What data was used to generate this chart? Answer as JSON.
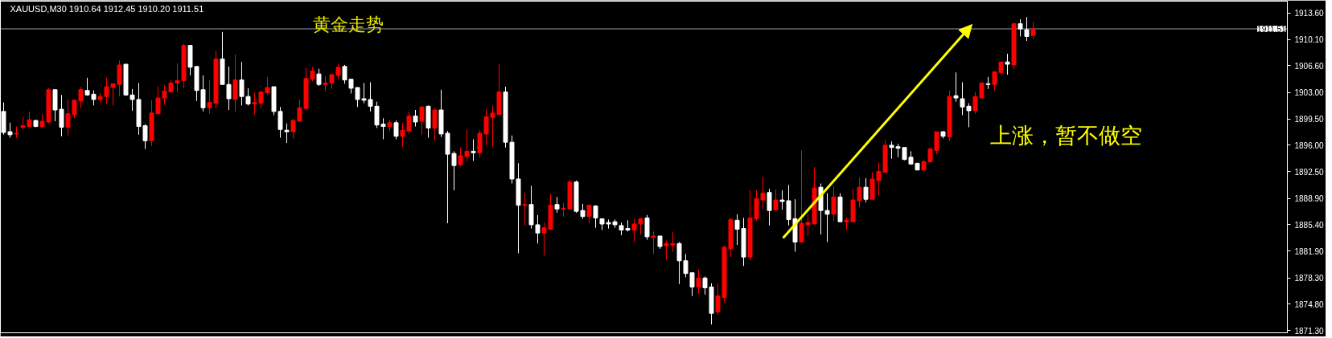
{
  "chart_data": {
    "type": "candlestick",
    "title": "XAUUSD,M30  1910.64 1912.45 1910.20 1911.51",
    "annotations": [
      "黄金走势",
      "上涨，暂不做空"
    ],
    "categories": [
      null,
      null,
      null,
      null,
      null,
      null,
      null,
      null,
      null,
      null,
      null,
      null,
      null,
      null,
      null,
      null,
      null,
      null,
      null,
      null,
      null,
      null,
      null,
      null,
      null,
      null,
      null,
      null,
      null,
      null,
      null,
      null,
      null,
      null,
      null,
      null,
      null,
      null,
      null,
      null,
      null,
      null,
      null,
      null,
      null,
      null,
      null,
      null,
      null,
      null,
      null,
      null,
      null,
      null,
      null,
      null,
      null,
      null,
      null,
      null,
      null,
      null,
      null,
      null,
      null,
      null,
      null,
      null,
      null,
      null,
      null,
      null,
      null,
      null,
      null,
      null,
      null,
      null,
      null,
      null,
      null,
      null,
      null,
      null,
      null,
      null,
      null,
      null,
      null,
      null,
      null,
      null,
      null,
      null,
      null,
      null,
      null,
      null,
      null,
      null,
      null,
      null,
      null,
      null,
      null,
      null,
      null,
      null,
      null,
      null,
      null,
      null,
      null,
      null,
      null,
      null,
      null,
      null,
      null,
      null,
      null,
      null,
      null,
      null,
      null,
      null,
      null,
      null,
      null,
      null,
      null,
      null,
      null,
      null,
      null,
      null,
      null,
      null,
      null,
      null,
      null,
      null,
      null,
      null,
      null,
      null,
      null,
      null,
      null,
      null,
      null,
      null,
      null,
      null,
      null,
      null,
      null,
      null,
      null,
      null,
      null,
      null,
      null,
      null,
      null,
      null,
      null,
      null,
      null,
      null,
      null,
      null,
      null,
      null,
      null,
      null,
      null,
      null,
      null,
      null,
      null,
      null,
      null,
      null,
      null,
      null,
      null,
      null,
      null,
      null,
      null,
      null,
      null,
      null,
      null,
      null,
      null,
      null,
      null,
      null
    ],
    "ohlc": [
      [
        1900.5,
        1901.7,
        1897.4,
        1897.7
      ],
      [
        1897.8,
        1899.0,
        1897.0,
        1897.4
      ],
      [
        1897.5,
        1898.5,
        1897.0,
        1897.6
      ],
      [
        1898.4,
        1899.8,
        1898.1,
        1898.6
      ],
      [
        1898.5,
        1900.5,
        1898.5,
        1899.4
      ],
      [
        1899.3,
        1899.4,
        1898.4,
        1898.5
      ],
      [
        1898.5,
        1900.2,
        1898.3,
        1899.2
      ],
      [
        1899.1,
        1903.6,
        1898.9,
        1903.4
      ],
      [
        1903.4,
        1903.4,
        1899.2,
        1900.7
      ],
      [
        1900.8,
        1902.7,
        1897.2,
        1898.4
      ],
      [
        1898.4,
        1902.1,
        1897.3,
        1900.2
      ],
      [
        1900.1,
        1902.1,
        1899.6,
        1902.0
      ],
      [
        1901.9,
        1903.8,
        1900.9,
        1903.4
      ],
      [
        1903.3,
        1905.0,
        1902.6,
        1902.7
      ],
      [
        1902.8,
        1903.3,
        1901.3,
        1902.1
      ],
      [
        1902.1,
        1903.0,
        1901.7,
        1902.5
      ],
      [
        1902.5,
        1905.0,
        1901.5,
        1903.8
      ],
      [
        1903.7,
        1904.2,
        1901.3,
        1904.2
      ],
      [
        1904.1,
        1907.3,
        1902.5,
        1906.7
      ],
      [
        1906.8,
        1906.8,
        1902.6,
        1902.7
      ],
      [
        1902.7,
        1903.5,
        1900.6,
        1902.1
      ],
      [
        1902.1,
        1904.3,
        1897.4,
        1898.5
      ],
      [
        1898.6,
        1898.8,
        1895.5,
        1896.6
      ],
      [
        1896.6,
        1902.0,
        1895.9,
        1900.3
      ],
      [
        1900.2,
        1903.8,
        1900.2,
        1902.3
      ],
      [
        1902.3,
        1904.0,
        1901.4,
        1903.2
      ],
      [
        1903.1,
        1904.7,
        1903.1,
        1904.3
      ],
      [
        1904.3,
        1906.9,
        1903.1,
        1904.6
      ],
      [
        1904.6,
        1909.5,
        1903.6,
        1909.3
      ],
      [
        1909.3,
        1909.3,
        1905.3,
        1906.4
      ],
      [
        1906.5,
        1906.5,
        1901.9,
        1903.3
      ],
      [
        1903.4,
        1905.3,
        1900.5,
        1901.0
      ],
      [
        1901.0,
        1904.7,
        1900.2,
        1901.7
      ],
      [
        1901.6,
        1908.6,
        1900.9,
        1907.5
      ],
      [
        1907.5,
        1911.1,
        1904.1,
        1904.1
      ],
      [
        1904.1,
        1906.5,
        1900.7,
        1902.2
      ],
      [
        1902.1,
        1908.1,
        1900.5,
        1904.7
      ],
      [
        1904.7,
        1907.1,
        1901.3,
        1902.5
      ],
      [
        1902.5,
        1903.6,
        1901.3,
        1901.5
      ],
      [
        1901.5,
        1903.0,
        1900.1,
        1901.7
      ],
      [
        1901.6,
        1903.2,
        1900.9,
        1903.1
      ],
      [
        1903.0,
        1905.1,
        1902.7,
        1903.7
      ],
      [
        1903.8,
        1903.8,
        1900.0,
        1900.5
      ],
      [
        1900.5,
        1901.1,
        1897.0,
        1898.1
      ],
      [
        1898.0,
        1898.9,
        1896.3,
        1897.8
      ],
      [
        1897.8,
        1899.5,
        1896.9,
        1899.3
      ],
      [
        1899.2,
        1902.1,
        1899.2,
        1901.0
      ],
      [
        1900.9,
        1906.3,
        1900.7,
        1904.9
      ],
      [
        1904.8,
        1906.4,
        1904.5,
        1905.9
      ],
      [
        1905.5,
        1906.2,
        1903.9,
        1904.1
      ],
      [
        1904.1,
        1905.2,
        1903.3,
        1904.3
      ],
      [
        1904.3,
        1905.6,
        1903.5,
        1905.4
      ],
      [
        1905.3,
        1906.9,
        1904.8,
        1906.4
      ],
      [
        1906.5,
        1906.7,
        1904.2,
        1904.7
      ],
      [
        1904.8,
        1904.8,
        1902.9,
        1903.6
      ],
      [
        1903.7,
        1903.7,
        1901.1,
        1902.1
      ],
      [
        1902.2,
        1904.3,
        1901.6,
        1902.0
      ],
      [
        1902.1,
        1904.4,
        1900.5,
        1901.2
      ],
      [
        1901.2,
        1901.8,
        1898.3,
        1898.7
      ],
      [
        1898.8,
        1899.6,
        1896.8,
        1898.5
      ],
      [
        1898.5,
        1899.4,
        1897.9,
        1899.0
      ],
      [
        1899.0,
        1899.3,
        1896.8,
        1897.2
      ],
      [
        1897.2,
        1899.0,
        1895.8,
        1898.0
      ],
      [
        1897.9,
        1900.5,
        1897.5,
        1899.9
      ],
      [
        1899.9,
        1900.7,
        1898.5,
        1899.1
      ],
      [
        1899.2,
        1901.2,
        1897.4,
        1901.1
      ],
      [
        1901.2,
        1901.3,
        1897.0,
        1898.3
      ],
      [
        1898.3,
        1901.0,
        1896.6,
        1900.7
      ],
      [
        1900.7,
        1903.4,
        1897.1,
        1897.5
      ],
      [
        1897.6,
        1897.9,
        1885.6,
        1894.8
      ],
      [
        1894.9,
        1895.2,
        1890.0,
        1893.3
      ],
      [
        1893.4,
        1895.7,
        1893.2,
        1894.6
      ],
      [
        1894.5,
        1898.1,
        1893.9,
        1895.2
      ],
      [
        1895.2,
        1896.8,
        1893.9,
        1895.0
      ],
      [
        1895.0,
        1898.0,
        1894.4,
        1897.6
      ],
      [
        1897.5,
        1900.8,
        1896.0,
        1899.8
      ],
      [
        1899.7,
        1901.3,
        1895.8,
        1900.3
      ],
      [
        1900.1,
        1906.8,
        1900.1,
        1903.1
      ],
      [
        1903.1,
        1903.8,
        1895.7,
        1896.4
      ],
      [
        1896.4,
        1897.3,
        1890.9,
        1891.5
      ],
      [
        1891.5,
        1893.6,
        1881.6,
        1888.0
      ],
      [
        1888.0,
        1889.7,
        1885.3,
        1888.1
      ],
      [
        1888.1,
        1890.6,
        1884.9,
        1885.4
      ],
      [
        1885.4,
        1886.7,
        1882.9,
        1884.3
      ],
      [
        1884.3,
        1885.7,
        1881.3,
        1885.0
      ],
      [
        1884.8,
        1889.5,
        1884.7,
        1888.0
      ],
      [
        1888.1,
        1889.1,
        1887.0,
        1887.5
      ],
      [
        1887.5,
        1888.3,
        1886.5,
        1887.6
      ],
      [
        1887.5,
        1891.4,
        1887.5,
        1891.1
      ],
      [
        1891.1,
        1891.3,
        1887.0,
        1887.2
      ],
      [
        1887.3,
        1888.2,
        1886.2,
        1886.5
      ],
      [
        1886.5,
        1888.0,
        1885.6,
        1888.0
      ],
      [
        1887.9,
        1888.0,
        1885.0,
        1886.3
      ],
      [
        1886.2,
        1886.2,
        1884.7,
        1885.5
      ],
      [
        1885.7,
        1886.1,
        1884.9,
        1885.5
      ],
      [
        1885.8,
        1886.1,
        1885.0,
        1885.4
      ],
      [
        1885.3,
        1885.7,
        1884.0,
        1884.7
      ],
      [
        1884.9,
        1886.0,
        1884.5,
        1884.7
      ],
      [
        1884.7,
        1886.2,
        1883.1,
        1885.5
      ],
      [
        1885.5,
        1886.3,
        1884.1,
        1886.2
      ],
      [
        1886.3,
        1886.7,
        1883.4,
        1883.8
      ],
      [
        1883.7,
        1884.5,
        1881.5,
        1883.9
      ],
      [
        1883.9,
        1883.9,
        1882.2,
        1882.5
      ],
      [
        1882.6,
        1883.3,
        1880.7,
        1882.9
      ],
      [
        1882.7,
        1884.4,
        1881.8,
        1882.9
      ],
      [
        1882.9,
        1883.1,
        1877.5,
        1880.6
      ],
      [
        1880.6,
        1881.5,
        1878.4,
        1878.9
      ],
      [
        1879.0,
        1879.0,
        1875.9,
        1877.1
      ],
      [
        1877.1,
        1879.4,
        1876.2,
        1878.3
      ],
      [
        1878.3,
        1878.5,
        1876.1,
        1877.0
      ],
      [
        1877.1,
        1877.6,
        1872.1,
        1873.6
      ],
      [
        1873.8,
        1877.5,
        1873.4,
        1875.9
      ],
      [
        1875.7,
        1882.7,
        1875.0,
        1882.4
      ],
      [
        1882.2,
        1886.3,
        1881.1,
        1886.1
      ],
      [
        1886.0,
        1886.8,
        1882.7,
        1884.8
      ],
      [
        1884.9,
        1886.3,
        1879.9,
        1881.1
      ],
      [
        1881.1,
        1890.0,
        1880.7,
        1886.3
      ],
      [
        1886.2,
        1890.0,
        1885.9,
        1888.9
      ],
      [
        1888.7,
        1891.8,
        1887.5,
        1889.6
      ],
      [
        1889.7,
        1890.2,
        1885.3,
        1887.3
      ],
      [
        1887.4,
        1890.1,
        1887.3,
        1888.7
      ],
      [
        1888.7,
        1890.0,
        1887.4,
        1888.5
      ],
      [
        1888.6,
        1890.7,
        1885.3,
        1886.1
      ],
      [
        1886.2,
        1888.8,
        1881.8,
        1883.1
      ],
      [
        1883.1,
        1895.3,
        1883.1,
        1885.6
      ],
      [
        1885.4,
        1886.8,
        1883.9,
        1885.7
      ],
      [
        1885.5,
        1893.1,
        1885.5,
        1890.3
      ],
      [
        1890.4,
        1890.9,
        1884.1,
        1887.3
      ],
      [
        1887.3,
        1889.6,
        1883.1,
        1886.8
      ],
      [
        1886.8,
        1890.6,
        1885.9,
        1889.1
      ],
      [
        1889.1,
        1889.6,
        1885.8,
        1885.8
      ],
      [
        1885.8,
        1886.4,
        1884.7,
        1886.0
      ],
      [
        1885.8,
        1890.2,
        1885.8,
        1888.7
      ],
      [
        1888.6,
        1891.7,
        1887.7,
        1890.4
      ],
      [
        1890.4,
        1891.6,
        1888.4,
        1888.8
      ],
      [
        1888.8,
        1892.4,
        1888.8,
        1891.5
      ],
      [
        1891.3,
        1893.7,
        1889.3,
        1892.5
      ],
      [
        1892.4,
        1896.7,
        1892.3,
        1896.0
      ],
      [
        1896.0,
        1896.5,
        1894.2,
        1895.7
      ],
      [
        1895.8,
        1896.2,
        1894.4,
        1895.6
      ],
      [
        1895.7,
        1895.7,
        1894.0,
        1894.1
      ],
      [
        1894.4,
        1895.2,
        1893.4,
        1893.5
      ],
      [
        1893.6,
        1893.6,
        1892.7,
        1892.7
      ],
      [
        1892.7,
        1894.1,
        1892.4,
        1893.8
      ],
      [
        1893.8,
        1895.7,
        1893.7,
        1895.5
      ],
      [
        1895.3,
        1897.8,
        1894.8,
        1897.8
      ],
      [
        1897.8,
        1897.9,
        1896.9,
        1897.2
      ],
      [
        1897.1,
        1903.3,
        1896.6,
        1902.5
      ],
      [
        1902.6,
        1905.7,
        1901.8,
        1902.3
      ],
      [
        1902.2,
        1904.4,
        1900.0,
        1901.1
      ],
      [
        1901.2,
        1901.6,
        1898.4,
        1900.6
      ],
      [
        1900.6,
        1903.1,
        1900.2,
        1902.5
      ],
      [
        1902.3,
        1904.3,
        1902.2,
        1904.3
      ],
      [
        1904.2,
        1905.1,
        1903.5,
        1904.1
      ],
      [
        1904.1,
        1905.8,
        1903.3,
        1905.8
      ],
      [
        1905.7,
        1907.1,
        1905.4,
        1907.1
      ],
      [
        1907.1,
        1908.2,
        1905.4,
        1906.8
      ],
      [
        1906.7,
        1912.2,
        1906.1,
        1912.2
      ],
      [
        1912.2,
        1912.8,
        1910.5,
        1911.5
      ],
      [
        1911.4,
        1913.1,
        1909.9,
        1910.5
      ],
      [
        1910.64,
        1912.45,
        1910.2,
        1911.51
      ],
      null,
      null,
      null,
      null,
      null,
      null,
      null,
      null,
      null,
      null,
      null,
      null,
      null,
      null,
      null,
      null,
      null,
      null,
      null,
      null,
      null,
      null,
      null,
      null,
      null,
      null,
      null,
      null,
      null,
      null,
      null,
      null,
      null,
      null,
      null,
      null,
      null,
      null,
      null
    ],
    "colors": [
      "#ffffff",
      "#ffffff",
      "#ff0000",
      "#ff0000",
      "#ff0000",
      "#ffffff",
      "#ff0000",
      "#ff0000",
      "#ffffff",
      "#ffffff",
      "#ff0000",
      "#ff0000",
      "#ff0000",
      "#ffffff",
      "#ffffff",
      "#ff0000",
      "#ff0000",
      "#ff0000",
      "#ff0000",
      "#ffffff",
      "#ffffff",
      "#ffffff",
      "#ffffff",
      "#ff0000",
      "#ff0000",
      "#ff0000",
      "#ff0000",
      "#ff0000",
      "#ff0000",
      "#ffffff",
      "#ffffff",
      "#ffffff",
      "#ff0000",
      "#ff0000",
      "#ffffff",
      "#ffffff",
      "#ff0000",
      "#ffffff",
      "#ffffff",
      "#ff0000",
      "#ff0000",
      "#ff0000",
      "#ffffff",
      "#ffffff",
      "#ffffff",
      "#ff0000",
      "#ff0000",
      "#ff0000",
      "#ff0000",
      "#ffffff",
      "#ff0000",
      "#ff0000",
      "#ff0000",
      "#ffffff",
      "#ffffff",
      "#ffffff",
      "#ffffff",
      "#ffffff",
      "#ffffff",
      "#ffffff",
      "#ff0000",
      "#ffffff",
      "#ff0000",
      "#ff0000",
      "#ffffff",
      "#ff0000",
      "#ffffff",
      "#ff0000",
      "#ffffff",
      "#ffffff",
      "#ffffff",
      "#ff0000",
      "#ff0000",
      "#ffffff",
      "#ff0000",
      "#ff0000",
      "#ff0000",
      "#ff0000",
      "#ffffff",
      "#ffffff",
      "#ffffff",
      "#ff0000",
      "#ffffff",
      "#ffffff",
      "#ff0000",
      "#ff0000",
      "#ffffff",
      "#ff0000",
      "#ff0000",
      "#ffffff",
      "#ffffff",
      "#ff0000",
      "#ffffff",
      "#ffffff",
      "#ffffff",
      "#ffffff",
      "#ffffff",
      "#ffffff",
      "#ff0000",
      "#ff0000",
      "#ffffff",
      "#ff0000",
      "#ffffff",
      "#ff0000",
      "#ff0000",
      "#ffffff",
      "#ffffff",
      "#ffffff",
      "#ff0000",
      "#ffffff",
      "#ffffff",
      "#ff0000",
      "#ff0000",
      "#ff0000",
      "#ffffff",
      "#ffffff",
      "#ff0000",
      "#ff0000",
      "#ff0000",
      "#ffffff",
      "#ff0000",
      "#ffffff",
      "#ffffff",
      "#ffffff",
      "#ff0000",
      "#ff0000",
      "#ff0000",
      "#ffffff",
      "#ffffff",
      "#ff0000",
      "#ffffff",
      "#ff0000",
      "#ff0000",
      "#ff0000",
      "#ffffff",
      "#ff0000",
      "#ff0000",
      "#ff0000",
      "#ffffff",
      "#ffffff",
      "#ffffff",
      "#ffffff",
      "#ffffff",
      "#ff0000",
      "#ff0000",
      "#ff0000",
      "#ffffff",
      "#ff0000",
      "#ffffff",
      "#ffffff",
      "#ffffff",
      "#ff0000",
      "#ff0000",
      "#ffffff",
      "#ff0000",
      "#ff0000",
      "#ffffff",
      "#ff0000",
      "#ffffff",
      "#ffffff",
      "#ff0000",
      null,
      null,
      null,
      null,
      null,
      null,
      null,
      null,
      null,
      null,
      null,
      null,
      null,
      null,
      null,
      null,
      null,
      null,
      null,
      null,
      null,
      null,
      null,
      null,
      null,
      null,
      null,
      null,
      null,
      null,
      null,
      null,
      null,
      null,
      null,
      null,
      null,
      null,
      null
    ],
    "ylim": [
      1871.0,
      1915.2
    ],
    "yticks": [
      {
        "value": 1871.3,
        "label": "1871.30"
      },
      {
        "value": 1874.8,
        "label": "1874.80"
      },
      {
        "value": 1878.3,
        "label": "1878.30"
      },
      {
        "value": 1881.9,
        "label": "1881.90"
      },
      {
        "value": 1885.4,
        "label": "1885.40"
      },
      {
        "value": 1888.9,
        "label": "1888.90"
      },
      {
        "value": 1892.5,
        "label": "1892.50"
      },
      {
        "value": 1896.0,
        "label": "1896.00"
      },
      {
        "value": 1899.5,
        "label": "1899.50"
      },
      {
        "value": 1903.0,
        "label": "1903.00"
      },
      {
        "value": 1906.6,
        "label": "1906.60"
      },
      {
        "value": 1910.1,
        "label": "1910.10"
      },
      {
        "value": 1913.6,
        "label": "1913.60"
      }
    ],
    "ref_lines": [
      {
        "axis": "y",
        "value": 1911.51,
        "label": "1911.51",
        "color": "#8c9aa8"
      }
    ],
    "tick_labels": "y"
  }
}
